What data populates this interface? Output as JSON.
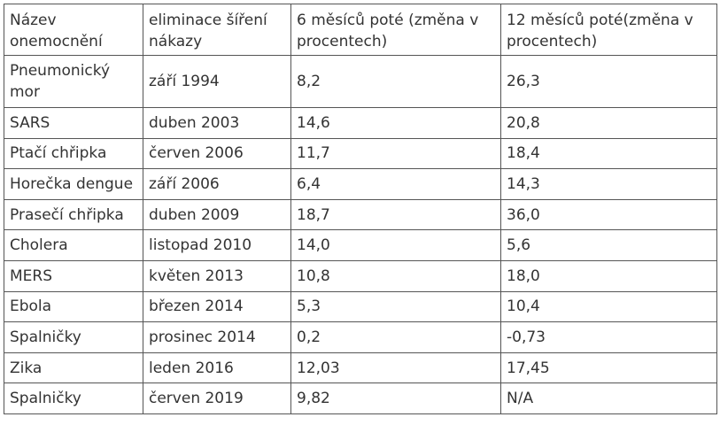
{
  "table": {
    "headers": [
      "Název onemocnění",
      "eliminace šíření nákazy",
      "6 měsíců poté (změna v procentech)",
      "12 měsíců poté(změna v procentech)"
    ],
    "rows": [
      [
        "Pneumonický mor",
        "září 1994",
        "8,2",
        "26,3"
      ],
      [
        "SARS",
        "duben 2003",
        "14,6",
        "20,8"
      ],
      [
        "Ptačí chřipka",
        "červen 2006",
        "11,7",
        "18,4"
      ],
      [
        "Horečka dengue",
        "září 2006",
        "6,4",
        "14,3"
      ],
      [
        "Prasečí chřipka",
        "duben 2009",
        "18,7",
        "36,0"
      ],
      [
        "Cholera",
        "listopad 2010",
        "14,0",
        "5,6"
      ],
      [
        "MERS",
        "květen 2013",
        "10,8",
        "18,0"
      ],
      [
        "Ebola",
        "březen 2014",
        "5,3",
        "10,4"
      ],
      [
        "Spalničky",
        "prosinec 2014",
        "0,2",
        "-0,73"
      ],
      [
        "Zika",
        "leden 2016",
        "12,03",
        "17,45"
      ],
      [
        "Spalničky",
        "červen 2019",
        "9,82",
        "N/A"
      ]
    ]
  }
}
